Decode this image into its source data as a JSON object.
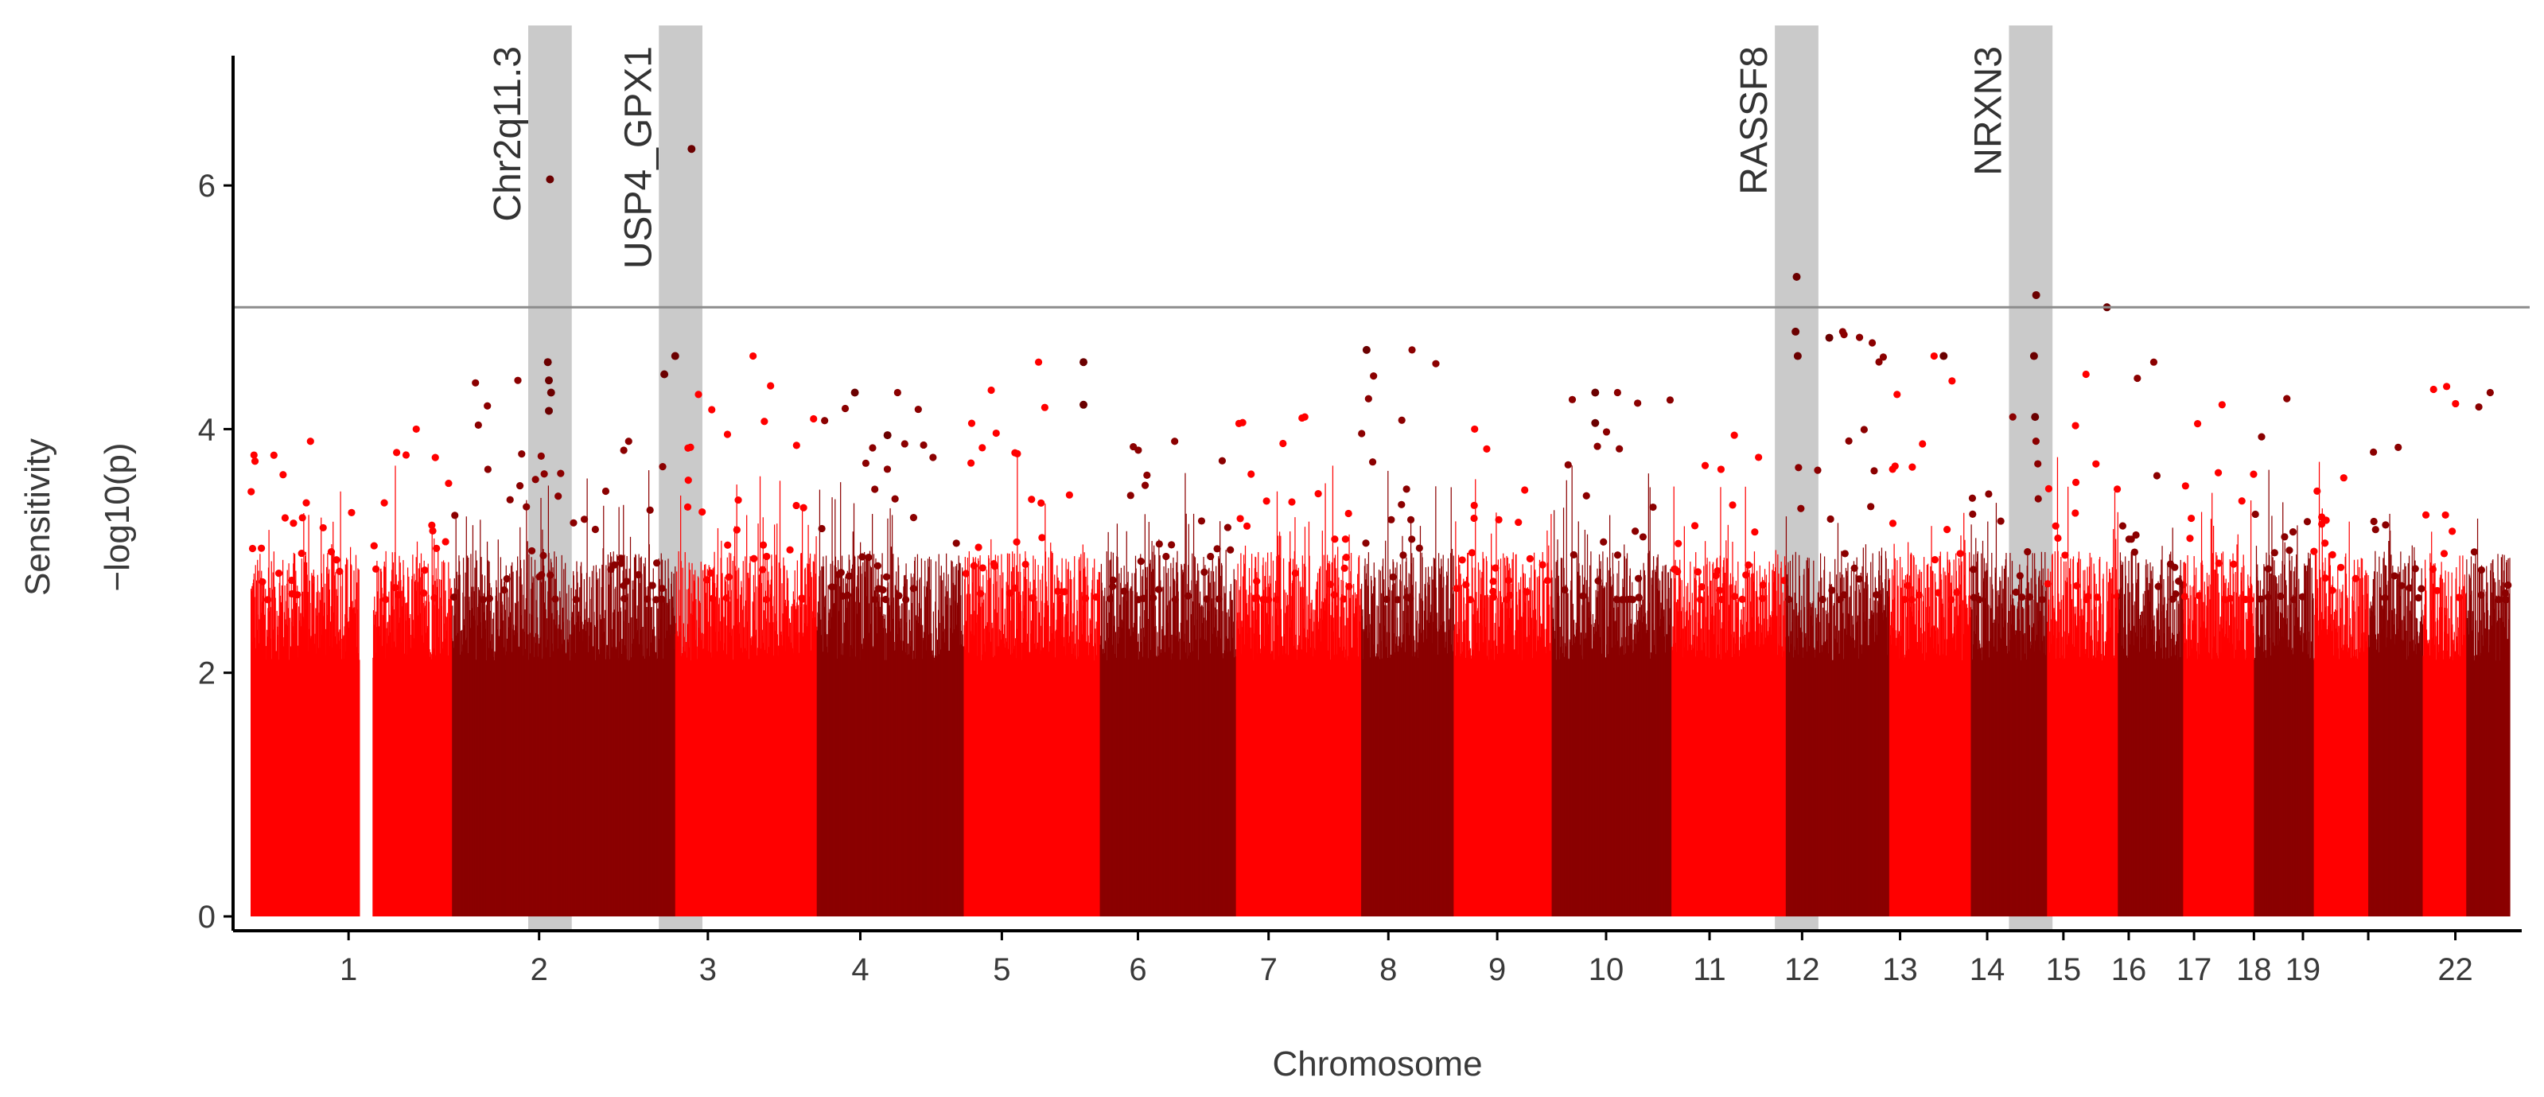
{
  "chart_data": {
    "type": "scatter",
    "subtype": "manhattan",
    "xlabel": "Chromosome",
    "ylabel_line1": "Sensitivity",
    "ylabel_line2": "−log10(p)",
    "ylim": [
      0,
      7
    ],
    "yticks": [
      0,
      2,
      4,
      6
    ],
    "threshold": 5,
    "colors": {
      "shades": [
        "#ff0000",
        "#b30000",
        "#8b0000",
        "#6b0000"
      ],
      "highlight_band": "#bdbdbd",
      "threshold_line": "#8c8c8c",
      "axis": "#000000"
    },
    "chromosomes": [
      {
        "label": "1",
        "start": 0.0,
        "end": 1.0,
        "shade": 0,
        "peak": 3.9
      },
      {
        "label": "",
        "start": 1.12,
        "end": 1.85,
        "shade": 0,
        "peak": 4.0
      },
      {
        "label": "2",
        "start": 1.85,
        "end": 2.95,
        "shade": 2,
        "peak": 4.4
      },
      {
        "label": "",
        "start": 2.95,
        "end": 3.9,
        "shade": 2,
        "peak": 3.9
      },
      {
        "label": "3",
        "start": 3.9,
        "end": 5.2,
        "shade": 0,
        "peak": 4.6
      },
      {
        "label": "4",
        "start": 5.2,
        "end": 6.55,
        "shade": 2,
        "peak": 4.3
      },
      {
        "label": "5",
        "start": 6.55,
        "end": 7.8,
        "shade": 0,
        "peak": 4.55
      },
      {
        "label": "6",
        "start": 7.8,
        "end": 9.05,
        "shade": 2,
        "peak": 3.9
      },
      {
        "label": "7",
        "start": 9.05,
        "end": 10.2,
        "shade": 0,
        "peak": 4.1
      },
      {
        "label": "8",
        "start": 10.2,
        "end": 11.05,
        "shade": 2,
        "peak": 4.65
      },
      {
        "label": "",
        "start": 11.05,
        "end": 11.4,
        "shade": 0,
        "peak": 4.0
      },
      {
        "label": "9",
        "start": 11.4,
        "end": 11.95,
        "shade": 0,
        "peak": 3.5
      },
      {
        "label": "10",
        "start": 11.95,
        "end": 13.05,
        "shade": 2,
        "peak": 4.3
      },
      {
        "label": "11",
        "start": 13.05,
        "end": 14.1,
        "shade": 0,
        "peak": 3.95
      },
      {
        "label": "12",
        "start": 14.1,
        "end": 15.05,
        "shade": 2,
        "peak": 4.8
      },
      {
        "label": "13",
        "start": 15.05,
        "end": 15.8,
        "shade": 0,
        "peak": 4.6
      },
      {
        "label": "14",
        "start": 15.8,
        "end": 16.5,
        "shade": 2,
        "peak": 4.1
      },
      {
        "label": "15",
        "start": 16.5,
        "end": 17.15,
        "shade": 0,
        "peak": 4.45
      },
      {
        "label": "16",
        "start": 17.15,
        "end": 17.75,
        "shade": 2,
        "peak": 4.55
      },
      {
        "label": "17",
        "start": 17.75,
        "end": 18.4,
        "shade": 0,
        "peak": 4.2
      },
      {
        "label": "18",
        "start": 18.4,
        "end": 18.95,
        "shade": 2,
        "peak": 4.25
      },
      {
        "label": "19",
        "start": 18.95,
        "end": 19.45,
        "shade": 0,
        "peak": 3.6
      },
      {
        "label": "",
        "start": 19.45,
        "end": 19.95,
        "shade": 2,
        "peak": 3.85
      },
      {
        "label": "22",
        "start": 19.95,
        "end": 20.35,
        "shade": 0,
        "peak": 4.35
      },
      {
        "label": "",
        "start": 20.35,
        "end": 20.75,
        "shade": 2,
        "peak": 4.3
      }
    ],
    "xticks": [
      {
        "label": "1",
        "pos": 0.9
      },
      {
        "label": "2",
        "pos": 2.65
      },
      {
        "label": "3",
        "pos": 4.2
      },
      {
        "label": "4",
        "pos": 5.6
      },
      {
        "label": "5",
        "pos": 6.9
      },
      {
        "label": "6",
        "pos": 8.15
      },
      {
        "label": "7",
        "pos": 9.35
      },
      {
        "label": "8",
        "pos": 10.45
      },
      {
        "label": "9",
        "pos": 11.45
      },
      {
        "label": "10",
        "pos": 12.45
      },
      {
        "label": "11",
        "pos": 13.4
      },
      {
        "label": "12",
        "pos": 14.25
      },
      {
        "label": "13",
        "pos": 15.15
      },
      {
        "label": "14",
        "pos": 15.95
      },
      {
        "label": "15",
        "pos": 16.65
      },
      {
        "label": "16",
        "pos": 17.25
      },
      {
        "label": "17",
        "pos": 17.85
      },
      {
        "label": "18",
        "pos": 18.4
      },
      {
        "label": "19",
        "pos": 18.85
      },
      {
        "label": "",
        "pos": 19.45
      },
      {
        "label": "22",
        "pos": 20.25
      }
    ],
    "highlights": [
      {
        "label": "Chr2q11.3",
        "start": 2.55,
        "end": 2.95
      },
      {
        "label": "USP4_GPX1",
        "start": 3.75,
        "end": 4.15
      },
      {
        "label": "RASSF8",
        "start": 14.0,
        "end": 14.4
      },
      {
        "label": "NRXN3",
        "start": 16.15,
        "end": 16.55
      }
    ],
    "notable_points": [
      {
        "x": 2.75,
        "y": 6.05
      },
      {
        "x": 2.73,
        "y": 4.55
      },
      {
        "x": 2.74,
        "y": 4.4
      },
      {
        "x": 2.76,
        "y": 4.3
      },
      {
        "x": 2.74,
        "y": 4.15
      },
      {
        "x": 4.05,
        "y": 6.3
      },
      {
        "x": 3.9,
        "y": 4.6
      },
      {
        "x": 3.8,
        "y": 4.45
      },
      {
        "x": 14.2,
        "y": 5.25
      },
      {
        "x": 14.19,
        "y": 4.8
      },
      {
        "x": 14.21,
        "y": 4.6
      },
      {
        "x": 16.4,
        "y": 5.1
      },
      {
        "x": 16.38,
        "y": 4.6
      },
      {
        "x": 16.39,
        "y": 4.1
      },
      {
        "x": 17.05,
        "y": 5.0
      },
      {
        "x": 10.25,
        "y": 4.65
      },
      {
        "x": 7.65,
        "y": 4.55
      },
      {
        "x": 7.65,
        "y": 4.2
      },
      {
        "x": 5.55,
        "y": 4.3
      },
      {
        "x": 5.85,
        "y": 3.95
      },
      {
        "x": 14.5,
        "y": 4.75
      },
      {
        "x": 15.55,
        "y": 4.6
      },
      {
        "x": 12.35,
        "y": 4.3
      },
      {
        "x": 12.35,
        "y": 4.05
      }
    ]
  }
}
